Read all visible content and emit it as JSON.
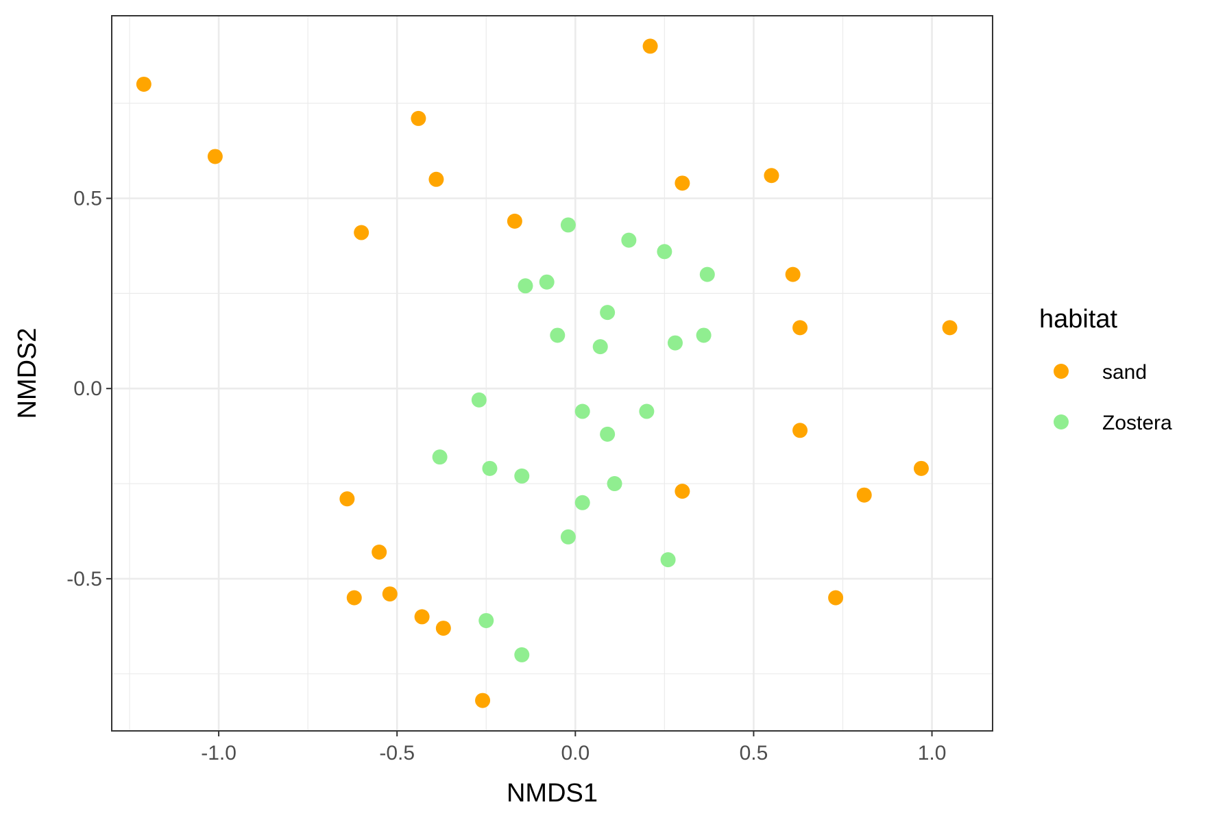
{
  "chart_data": {
    "type": "scatter",
    "xlabel": "NMDS1",
    "ylabel": "NMDS2",
    "xlim": [
      -1.3,
      1.17
    ],
    "ylim": [
      -0.9,
      0.98
    ],
    "x_ticks": [
      -1.0,
      -0.5,
      0.0,
      0.5,
      1.0
    ],
    "x_tick_labels": [
      "-1.0",
      "-0.5",
      "0.0",
      "0.5",
      "1.0"
    ],
    "y_ticks": [
      -0.5,
      0.0,
      0.5
    ],
    "y_tick_labels": [
      "-0.5",
      "0.0",
      "0.5"
    ],
    "grid": true,
    "legend": {
      "title": "habitat",
      "position": "right",
      "entries": [
        {
          "label": "sand",
          "color": "#FFA500"
        },
        {
          "label": "Zostera",
          "color": "#90EE90"
        }
      ]
    },
    "series": [
      {
        "name": "sand",
        "color": "#FFA500",
        "points": [
          {
            "x": -1.21,
            "y": 0.8
          },
          {
            "x": -1.01,
            "y": 0.61
          },
          {
            "x": -0.44,
            "y": 0.71
          },
          {
            "x": -0.39,
            "y": 0.55
          },
          {
            "x": 0.21,
            "y": 0.9
          },
          {
            "x": 0.3,
            "y": 0.54
          },
          {
            "x": 0.55,
            "y": 0.56
          },
          {
            "x": -0.6,
            "y": 0.41
          },
          {
            "x": -0.17,
            "y": 0.44
          },
          {
            "x": 0.61,
            "y": 0.3
          },
          {
            "x": 0.63,
            "y": 0.16
          },
          {
            "x": 1.05,
            "y": 0.16
          },
          {
            "x": 0.63,
            "y": -0.11
          },
          {
            "x": 0.97,
            "y": -0.21
          },
          {
            "x": 0.81,
            "y": -0.28
          },
          {
            "x": 0.3,
            "y": -0.27
          },
          {
            "x": -0.64,
            "y": -0.29
          },
          {
            "x": -0.55,
            "y": -0.43
          },
          {
            "x": -0.62,
            "y": -0.55
          },
          {
            "x": -0.52,
            "y": -0.54
          },
          {
            "x": -0.43,
            "y": -0.6
          },
          {
            "x": -0.37,
            "y": -0.63
          },
          {
            "x": -0.26,
            "y": -0.82
          },
          {
            "x": 0.73,
            "y": -0.55
          }
        ]
      },
      {
        "name": "Zostera",
        "color": "#90EE90",
        "points": [
          {
            "x": -0.02,
            "y": 0.43
          },
          {
            "x": 0.15,
            "y": 0.39
          },
          {
            "x": 0.25,
            "y": 0.36
          },
          {
            "x": 0.37,
            "y": 0.3
          },
          {
            "x": -0.08,
            "y": 0.28
          },
          {
            "x": -0.14,
            "y": 0.27
          },
          {
            "x": 0.09,
            "y": 0.2
          },
          {
            "x": -0.05,
            "y": 0.14
          },
          {
            "x": 0.07,
            "y": 0.11
          },
          {
            "x": 0.28,
            "y": 0.12
          },
          {
            "x": 0.36,
            "y": 0.14
          },
          {
            "x": -0.27,
            "y": -0.03
          },
          {
            "x": 0.02,
            "y": -0.06
          },
          {
            "x": 0.2,
            "y": -0.06
          },
          {
            "x": 0.09,
            "y": -0.12
          },
          {
            "x": -0.38,
            "y": -0.18
          },
          {
            "x": -0.24,
            "y": -0.21
          },
          {
            "x": -0.15,
            "y": -0.23
          },
          {
            "x": 0.11,
            "y": -0.25
          },
          {
            "x": 0.02,
            "y": -0.3
          },
          {
            "x": -0.02,
            "y": -0.39
          },
          {
            "x": 0.26,
            "y": -0.45
          },
          {
            "x": -0.25,
            "y": -0.61
          },
          {
            "x": -0.15,
            "y": -0.7
          }
        ]
      }
    ]
  }
}
